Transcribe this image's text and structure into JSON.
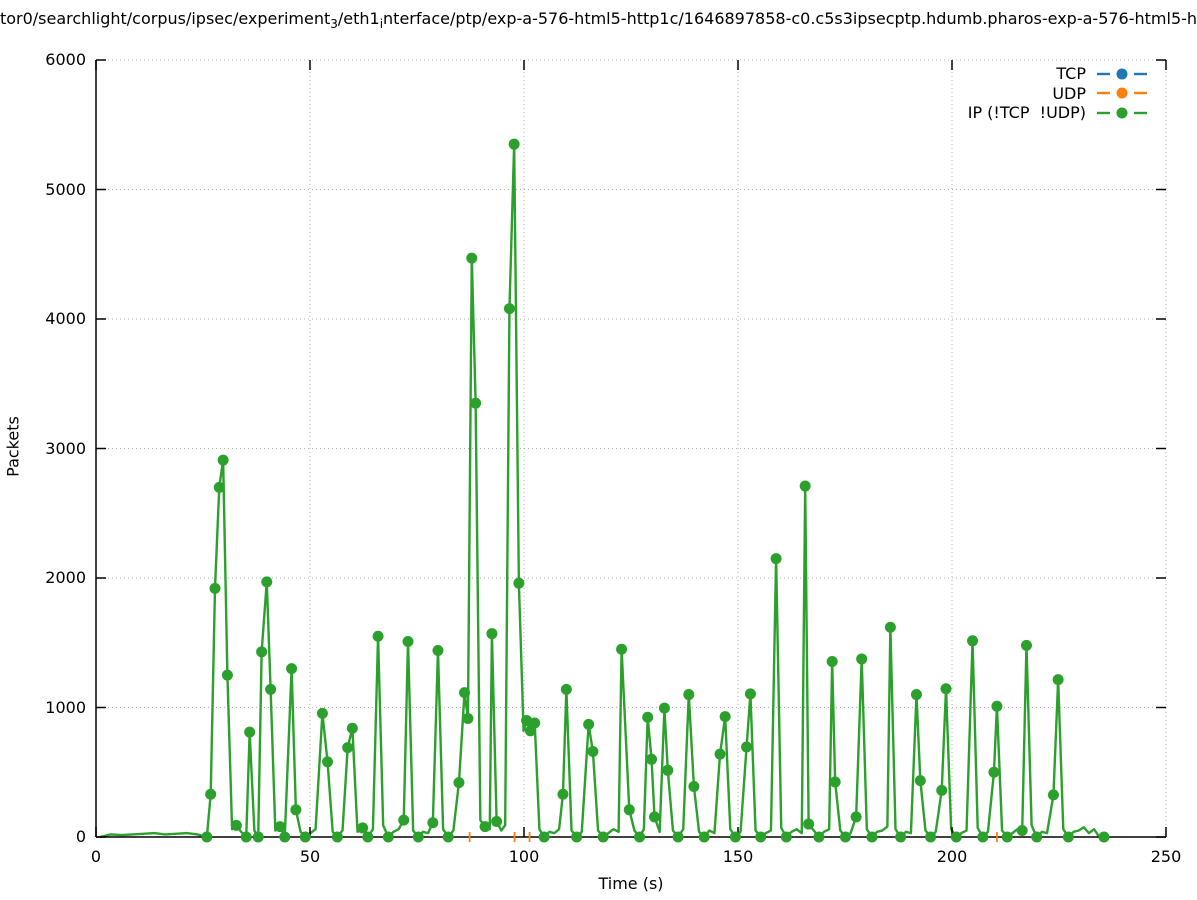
{
  "title": {
    "part1": "tor0/searchlight/corpus/ipsec/experiment",
    "sub1": "3",
    "part2": "/eth1",
    "sub2": "i",
    "part3": "nterface/ptp/exp-a-576-html5-http1c/1646897858-c0.c5s3ipsecptp.hdumb.pharos-exp-a-576-html5-h"
  },
  "axes": {
    "xlabel": "Time (s)",
    "ylabel": "Packets",
    "x_ticks": [
      0,
      50,
      100,
      150,
      200,
      250
    ],
    "y_ticks": [
      0,
      1000,
      2000,
      3000,
      4000,
      5000,
      6000
    ]
  },
  "legend": [
    {
      "label": "TCP",
      "color": "#1f77b4"
    },
    {
      "label": "UDP",
      "color": "#ff7f0e"
    },
    {
      "label": "IP (!TCP  !UDP)",
      "color": "#2ca02c"
    }
  ],
  "chart_data": {
    "type": "line",
    "title": "tor0/searchlight/corpus/ipsec/experiment_3/eth1_interface/ptp/exp-a-576-html5-http1c/1646897858-c0.c5s3ipsecptp.hdumb.pharos-exp-a-576-html5-h",
    "xlabel": "Time (s)",
    "ylabel": "Packets",
    "xlim": [
      0,
      250
    ],
    "ylim": [
      0,
      6000
    ],
    "grid": true,
    "legend_position": "top-right-inside",
    "grid_color": "#b0b0b0",
    "series": [
      {
        "name": "TCP",
        "color": "#1f77b4",
        "marker": "circle",
        "points": []
      },
      {
        "name": "UDP",
        "color": "#ff7f0e",
        "marker": "dash",
        "points": [
          [
            87.3,
            10,
            0
          ],
          [
            97.8,
            12,
            0
          ],
          [
            101.3,
            10,
            0
          ],
          [
            210.5,
            8,
            0
          ]
        ]
      },
      {
        "name": "IP (!TCP  !UDP)",
        "color": "#2ca02c",
        "marker": "circle",
        "points": [
          [
            0.9,
            0,
            0
          ],
          [
            3.4,
            20,
            0
          ],
          [
            6.0,
            15,
            0
          ],
          [
            8.5,
            20,
            0
          ],
          [
            11.0,
            25,
            0
          ],
          [
            13.6,
            30,
            0
          ],
          [
            16.1,
            20,
            0
          ],
          [
            18.6,
            25,
            0
          ],
          [
            21.2,
            30,
            0
          ],
          [
            23.7,
            20,
            0
          ],
          [
            25.9,
            0,
            1
          ],
          [
            26.8,
            330,
            1
          ],
          [
            27.8,
            1920,
            1
          ],
          [
            28.8,
            2700,
            1
          ],
          [
            29.7,
            2910,
            1
          ],
          [
            30.7,
            1250,
            1
          ],
          [
            31.8,
            60,
            0
          ],
          [
            32.8,
            90,
            1
          ],
          [
            33.9,
            40,
            0
          ],
          [
            35.1,
            0,
            1
          ],
          [
            35.9,
            810,
            1
          ],
          [
            37.0,
            50,
            0
          ],
          [
            37.9,
            0,
            1
          ],
          [
            38.7,
            1430,
            1
          ],
          [
            39.9,
            1970,
            1
          ],
          [
            40.8,
            1140,
            1
          ],
          [
            41.9,
            50,
            0
          ],
          [
            43.0,
            80,
            1
          ],
          [
            44.1,
            0,
            1
          ],
          [
            45.7,
            1300,
            1
          ],
          [
            46.7,
            210,
            1
          ],
          [
            47.8,
            40,
            0
          ],
          [
            48.9,
            0,
            1
          ],
          [
            50.1,
            30,
            0
          ],
          [
            51.3,
            60,
            0
          ],
          [
            52.9,
            955,
            1
          ],
          [
            54.1,
            580,
            1
          ],
          [
            55.3,
            40,
            0
          ],
          [
            56.4,
            0,
            1
          ],
          [
            57.6,
            50,
            0
          ],
          [
            58.8,
            690,
            1
          ],
          [
            59.9,
            840,
            1
          ],
          [
            61.1,
            40,
            0
          ],
          [
            62.3,
            70,
            1
          ],
          [
            63.5,
            0,
            1
          ],
          [
            64.7,
            60,
            0
          ],
          [
            65.9,
            1550,
            1
          ],
          [
            67.1,
            90,
            0
          ],
          [
            68.3,
            0,
            1
          ],
          [
            69.5,
            40,
            0
          ],
          [
            70.7,
            60,
            0
          ],
          [
            71.9,
            130,
            1
          ],
          [
            72.9,
            1510,
            1
          ],
          [
            74.1,
            50,
            0
          ],
          [
            75.3,
            0,
            1
          ],
          [
            76.4,
            40,
            0
          ],
          [
            77.6,
            30,
            0
          ],
          [
            78.7,
            110,
            1
          ],
          [
            79.9,
            1440,
            1
          ],
          [
            81.1,
            60,
            0
          ],
          [
            82.3,
            0,
            1
          ],
          [
            83.5,
            50,
            0
          ],
          [
            84.8,
            420,
            1
          ],
          [
            86.1,
            1115,
            1
          ],
          [
            86.9,
            915,
            1
          ],
          [
            87.8,
            4470,
            1
          ],
          [
            88.7,
            3350,
            1
          ],
          [
            89.8,
            130,
            0
          ],
          [
            90.9,
            80,
            1
          ],
          [
            92.0,
            60,
            0
          ],
          [
            92.5,
            1570,
            1
          ],
          [
            93.6,
            120,
            1
          ],
          [
            94.7,
            50,
            0
          ],
          [
            95.6,
            90,
            0
          ],
          [
            96.6,
            4080,
            1
          ],
          [
            97.7,
            5350,
            1
          ],
          [
            98.8,
            1960,
            1
          ],
          [
            99.9,
            820,
            0
          ],
          [
            100.6,
            900,
            1
          ],
          [
            101.5,
            820,
            1
          ],
          [
            102.5,
            880,
            1
          ],
          [
            103.6,
            60,
            0
          ],
          [
            104.7,
            0,
            1
          ],
          [
            105.9,
            40,
            0
          ],
          [
            107.1,
            30,
            0
          ],
          [
            108.2,
            60,
            0
          ],
          [
            109.1,
            330,
            1
          ],
          [
            109.9,
            1140,
            1
          ],
          [
            111.1,
            50,
            0
          ],
          [
            112.3,
            0,
            1
          ],
          [
            113.5,
            40,
            0
          ],
          [
            115.1,
            870,
            1
          ],
          [
            116.1,
            660,
            1
          ],
          [
            117.3,
            50,
            0
          ],
          [
            118.5,
            0,
            1
          ],
          [
            119.7,
            30,
            0
          ],
          [
            120.9,
            60,
            0
          ],
          [
            122.1,
            40,
            0
          ],
          [
            122.8,
            1450,
            1
          ],
          [
            124.6,
            210,
            1
          ],
          [
            125.8,
            50,
            0
          ],
          [
            127.0,
            0,
            1
          ],
          [
            128.0,
            60,
            0
          ],
          [
            128.9,
            925,
            1
          ],
          [
            129.8,
            600,
            1
          ],
          [
            130.5,
            155,
            1
          ],
          [
            131.7,
            40,
            0
          ],
          [
            132.8,
            995,
            1
          ],
          [
            133.6,
            515,
            1
          ],
          [
            134.8,
            50,
            0
          ],
          [
            136.0,
            0,
            1
          ],
          [
            137.2,
            60,
            0
          ],
          [
            138.5,
            1100,
            1
          ],
          [
            139.7,
            390,
            1
          ],
          [
            140.9,
            40,
            0
          ],
          [
            142.1,
            0,
            1
          ],
          [
            143.3,
            50,
            0
          ],
          [
            144.5,
            30,
            0
          ],
          [
            145.8,
            640,
            1
          ],
          [
            147.0,
            930,
            1
          ],
          [
            148.2,
            60,
            0
          ],
          [
            149.4,
            0,
            1
          ],
          [
            150.6,
            40,
            0
          ],
          [
            152.0,
            695,
            1
          ],
          [
            152.9,
            1105,
            1
          ],
          [
            154.1,
            50,
            0
          ],
          [
            155.3,
            0,
            1
          ],
          [
            156.5,
            30,
            0
          ],
          [
            157.7,
            50,
            0
          ],
          [
            158.9,
            2150,
            1
          ],
          [
            160.1,
            70,
            0
          ],
          [
            161.3,
            0,
            1
          ],
          [
            162.5,
            40,
            0
          ],
          [
            163.7,
            60,
            0
          ],
          [
            164.9,
            30,
            0
          ],
          [
            165.7,
            2710,
            1
          ],
          [
            166.5,
            100,
            1
          ],
          [
            167.7,
            50,
            0
          ],
          [
            168.9,
            0,
            1
          ],
          [
            170.1,
            40,
            0
          ],
          [
            171.3,
            60,
            0
          ],
          [
            172.0,
            1355,
            1
          ],
          [
            172.7,
            425,
            1
          ],
          [
            173.9,
            50,
            0
          ],
          [
            175.1,
            0,
            1
          ],
          [
            176.3,
            30,
            0
          ],
          [
            177.6,
            155,
            1
          ],
          [
            178.9,
            1375,
            1
          ],
          [
            180.1,
            60,
            0
          ],
          [
            181.3,
            0,
            1
          ],
          [
            182.5,
            40,
            0
          ],
          [
            183.7,
            50,
            0
          ],
          [
            184.9,
            80,
            0
          ],
          [
            185.6,
            1620,
            1
          ],
          [
            186.8,
            60,
            0
          ],
          [
            188.0,
            0,
            1
          ],
          [
            189.2,
            40,
            0
          ],
          [
            190.4,
            30,
            0
          ],
          [
            191.7,
            1100,
            1
          ],
          [
            192.6,
            435,
            1
          ],
          [
            193.8,
            50,
            0
          ],
          [
            195.0,
            0,
            1
          ],
          [
            196.2,
            40,
            0
          ],
          [
            197.6,
            360,
            1
          ],
          [
            198.6,
            1145,
            1
          ],
          [
            199.8,
            60,
            0
          ],
          [
            201.0,
            0,
            1
          ],
          [
            202.2,
            30,
            0
          ],
          [
            203.4,
            50,
            0
          ],
          [
            204.8,
            1515,
            1
          ],
          [
            206.0,
            70,
            0
          ],
          [
            207.2,
            0,
            1
          ],
          [
            208.4,
            40,
            0
          ],
          [
            209.8,
            500,
            1
          ],
          [
            210.5,
            1010,
            1
          ],
          [
            211.7,
            50,
            0
          ],
          [
            212.9,
            0,
            1
          ],
          [
            214.1,
            30,
            0
          ],
          [
            215.3,
            60,
            0
          ],
          [
            216.4,
            50,
            1
          ],
          [
            217.4,
            1480,
            1
          ],
          [
            218.6,
            90,
            0
          ],
          [
            219.8,
            0,
            1
          ],
          [
            221.0,
            40,
            0
          ],
          [
            222.2,
            30,
            0
          ],
          [
            223.7,
            325,
            1
          ],
          [
            224.8,
            1215,
            1
          ],
          [
            226.0,
            60,
            0
          ],
          [
            227.2,
            0,
            1
          ],
          [
            228.4,
            40,
            0
          ],
          [
            229.6,
            50,
            0
          ],
          [
            230.8,
            75,
            0
          ],
          [
            232.0,
            30,
            0
          ],
          [
            233.2,
            60,
            0
          ],
          [
            234.4,
            0,
            0
          ],
          [
            235.5,
            0,
            1
          ]
        ]
      }
    ]
  }
}
